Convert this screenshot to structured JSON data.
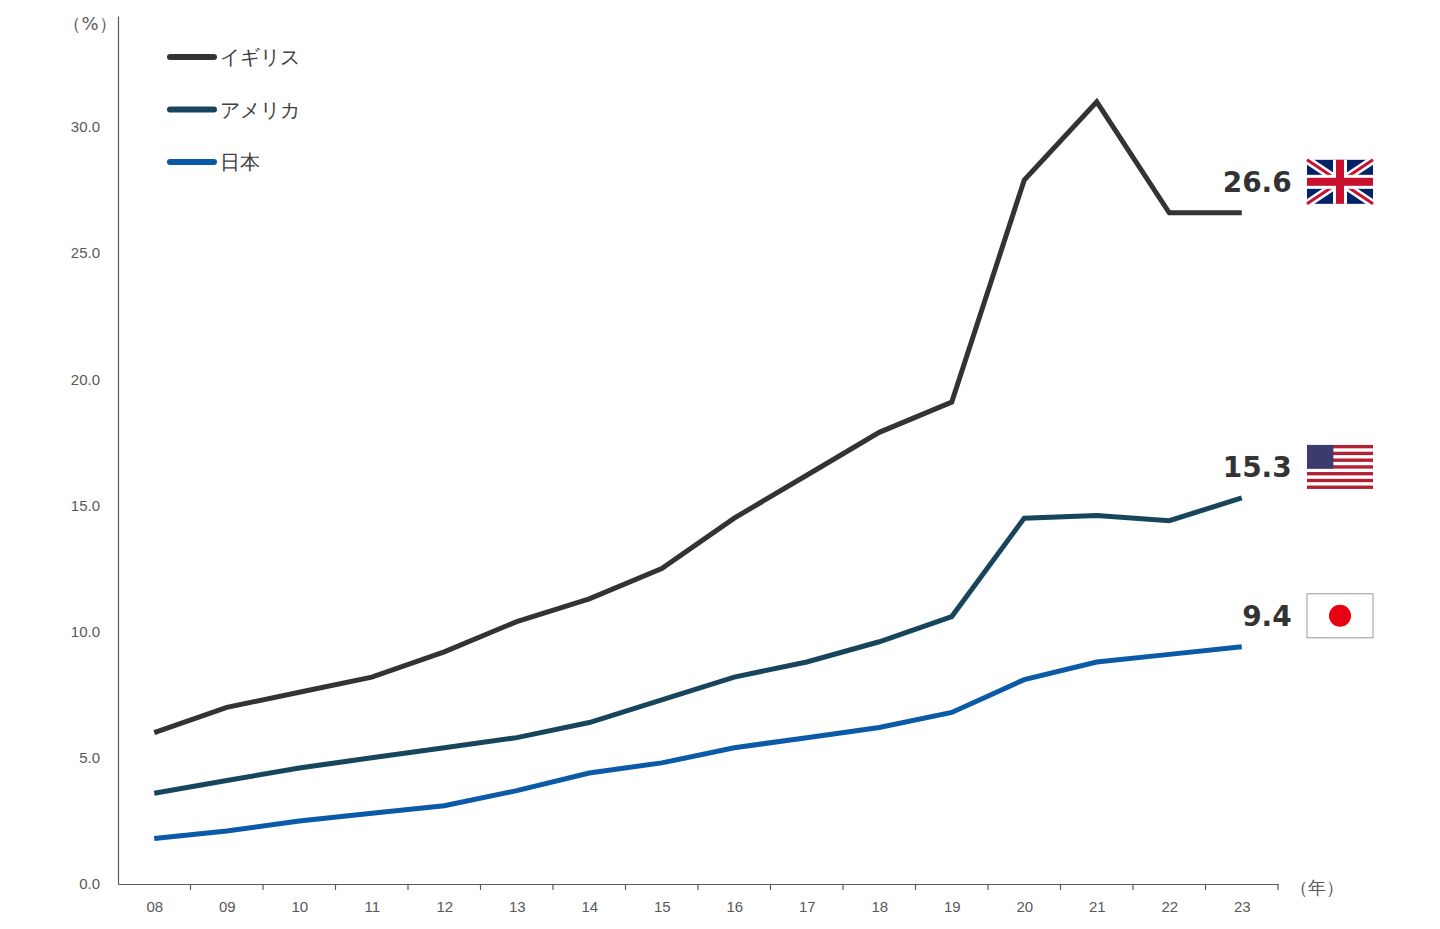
{
  "chart_data": {
    "type": "line",
    "y_label": "（%）",
    "x_label": "（年）",
    "categories": [
      "08",
      "09",
      "10",
      "11",
      "12",
      "13",
      "14",
      "15",
      "16",
      "17",
      "18",
      "19",
      "20",
      "21",
      "22",
      "23"
    ],
    "series": [
      {
        "name": "イギリス",
        "color": "#333333",
        "values": [
          6.0,
          7.0,
          7.6,
          8.2,
          9.2,
          10.4,
          11.3,
          12.5,
          14.5,
          16.2,
          17.9,
          19.1,
          27.9,
          31.0,
          26.6,
          26.6
        ]
      },
      {
        "name": "アメリカ",
        "color": "#17465c",
        "values": [
          3.6,
          4.1,
          4.6,
          5.0,
          5.4,
          5.8,
          6.4,
          7.3,
          8.2,
          8.8,
          9.6,
          10.6,
          14.5,
          14.6,
          14.4,
          15.3
        ]
      },
      {
        "name": "日本",
        "color": "#0a5aa8",
        "values": [
          1.8,
          2.1,
          2.5,
          2.8,
          3.1,
          3.7,
          4.4,
          4.8,
          5.4,
          5.8,
          6.2,
          6.8,
          8.1,
          8.8,
          9.1,
          9.4
        ]
      }
    ],
    "ylim": [
      0,
      34.4
    ],
    "yticks": [
      {
        "value": 0,
        "label": "0.0"
      },
      {
        "value": 5,
        "label": "5.0"
      },
      {
        "value": 10,
        "label": "10.0"
      },
      {
        "value": 15,
        "label": "15.0"
      },
      {
        "value": 20,
        "label": "20.0"
      },
      {
        "value": 25,
        "label": "25.0"
      },
      {
        "value": 30,
        "label": "30.0"
      }
    ],
    "grid": false,
    "legend": "top-left",
    "data_labels": true
  }
}
